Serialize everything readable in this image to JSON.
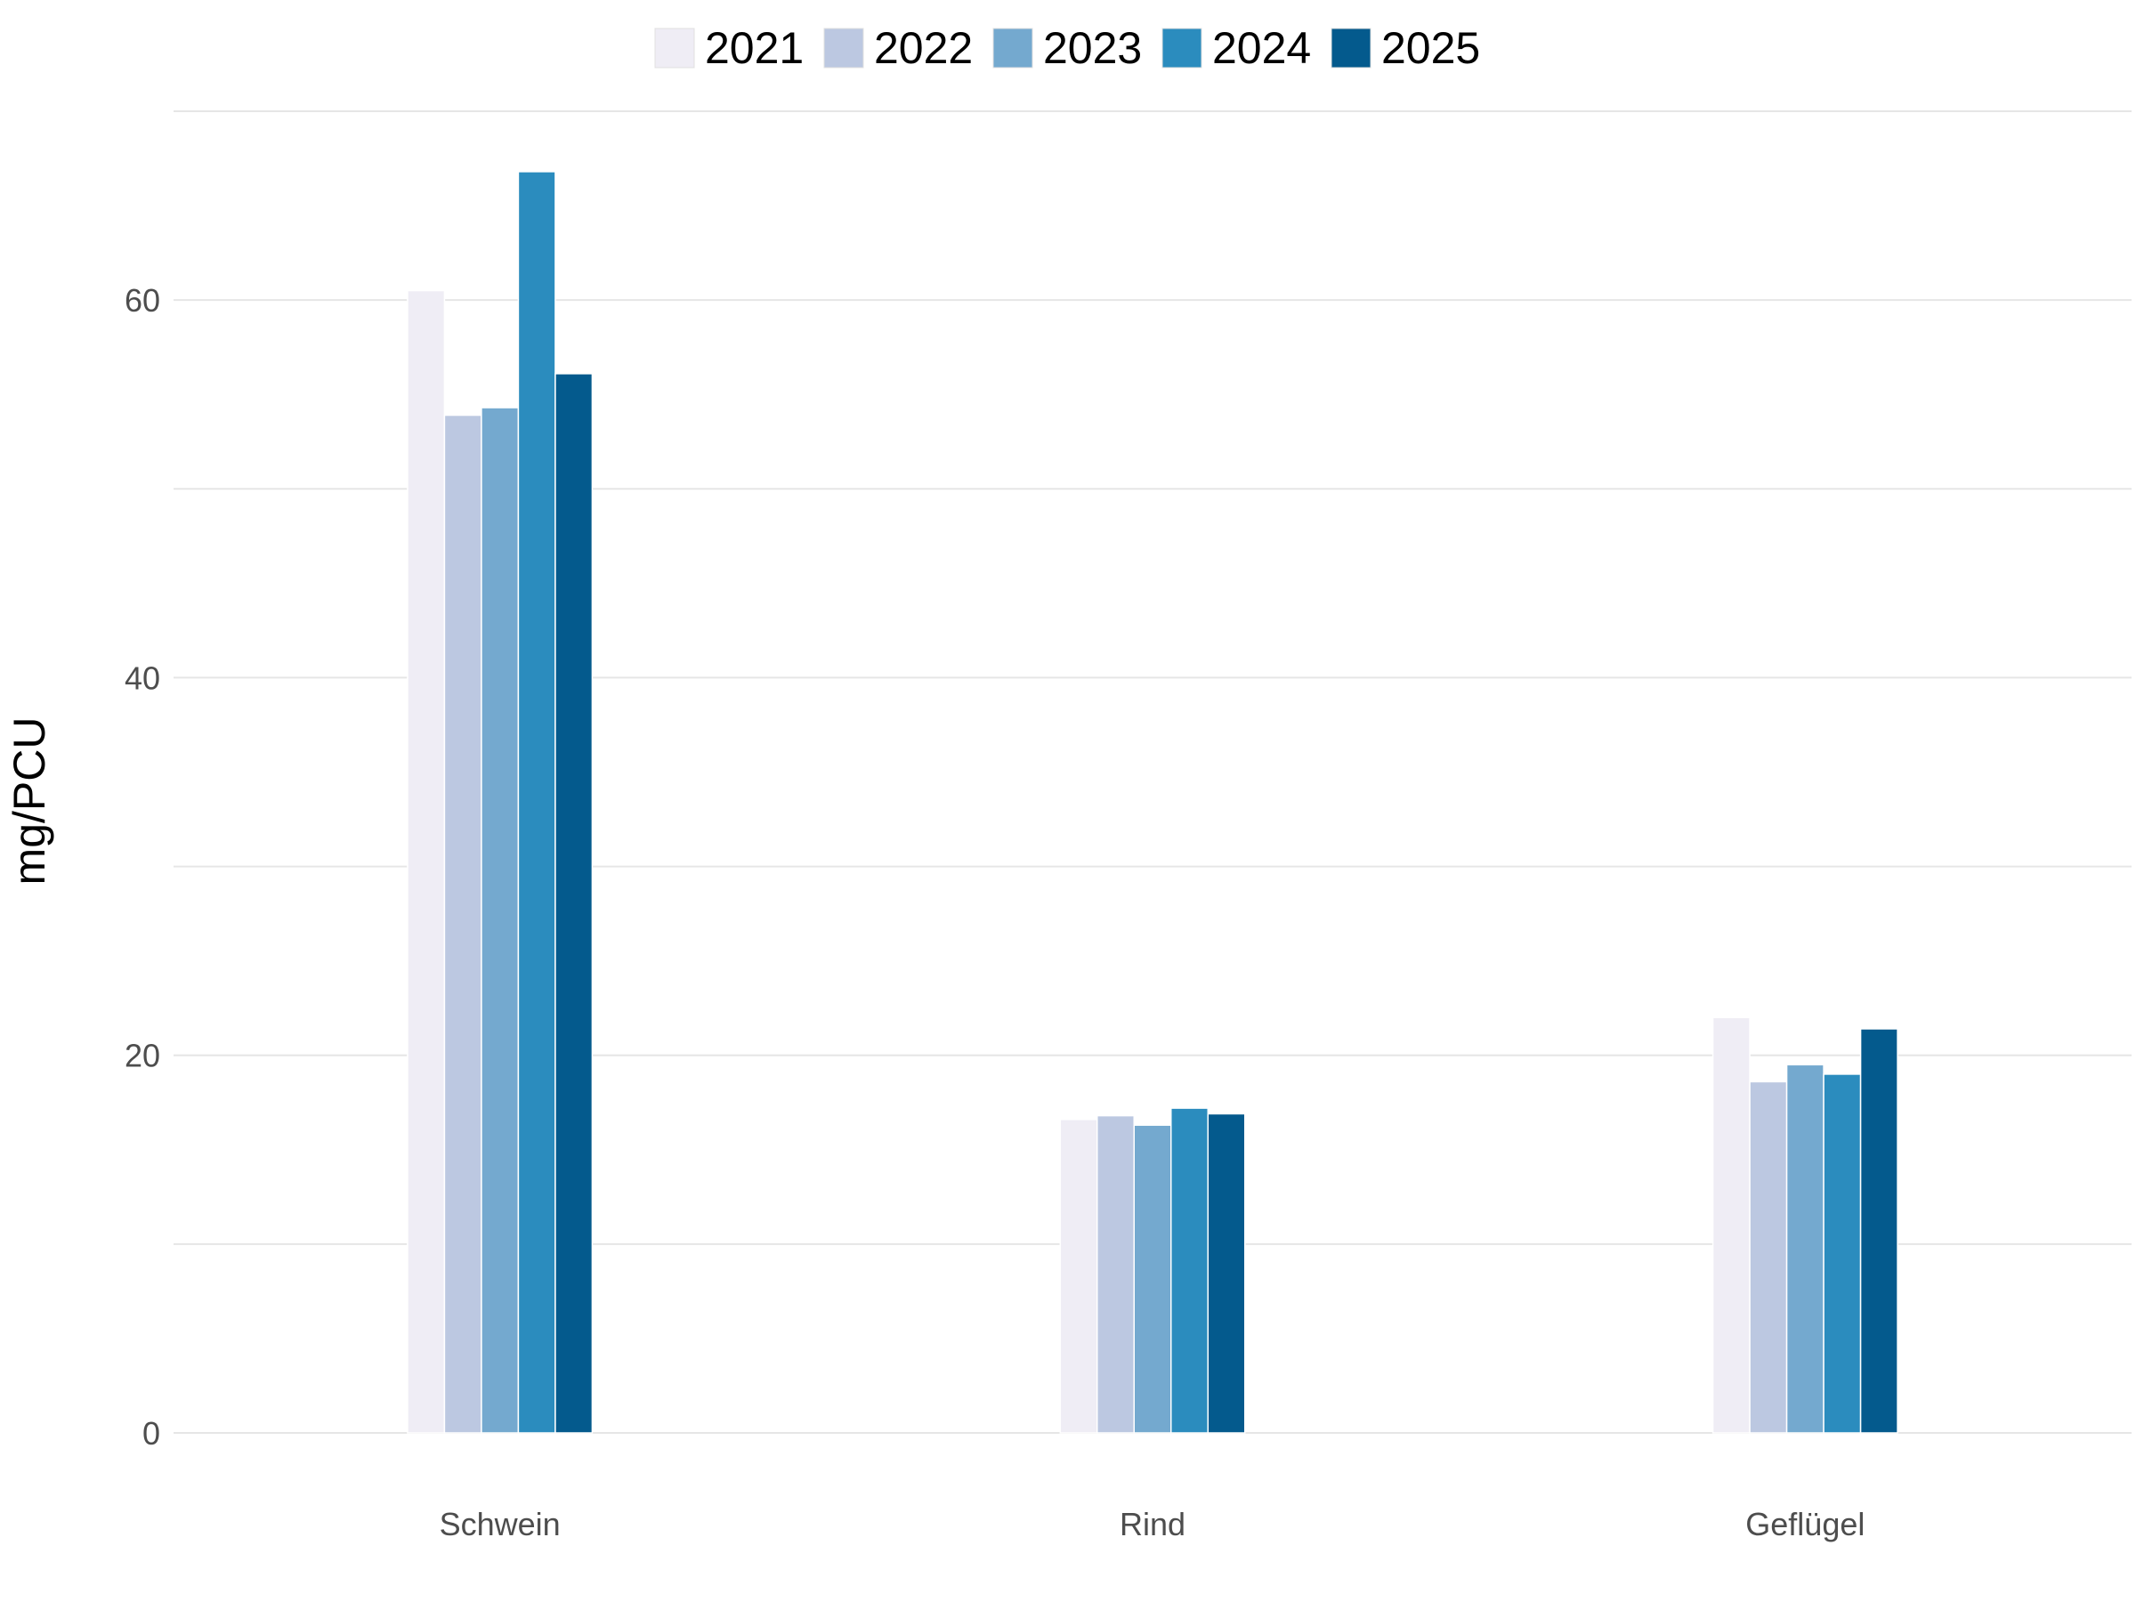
{
  "chart_data": {
    "type": "bar",
    "title": "",
    "xlabel": "",
    "ylabel": "mg/PCU",
    "categories": [
      "Schwein",
      "Rind",
      "Geflügel"
    ],
    "series": [
      {
        "name": "2021",
        "color": "#efedf5",
        "values": [
          60.5,
          16.6,
          22.0
        ]
      },
      {
        "name": "2022",
        "color": "#bcc8e1",
        "values": [
          53.9,
          16.8,
          18.6
        ]
      },
      {
        "name": "2023",
        "color": "#74a9cf",
        "values": [
          54.3,
          16.3,
          19.5
        ]
      },
      {
        "name": "2024",
        "color": "#2b8cbe",
        "values": [
          66.8,
          17.2,
          19.0
        ]
      },
      {
        "name": "2025",
        "color": "#045a8d",
        "values": [
          56.1,
          16.9,
          21.4
        ]
      }
    ],
    "ylim": [
      0,
      70
    ],
    "yticks": [
      0,
      20,
      40,
      60
    ],
    "grid": true,
    "legend_position": "top"
  }
}
